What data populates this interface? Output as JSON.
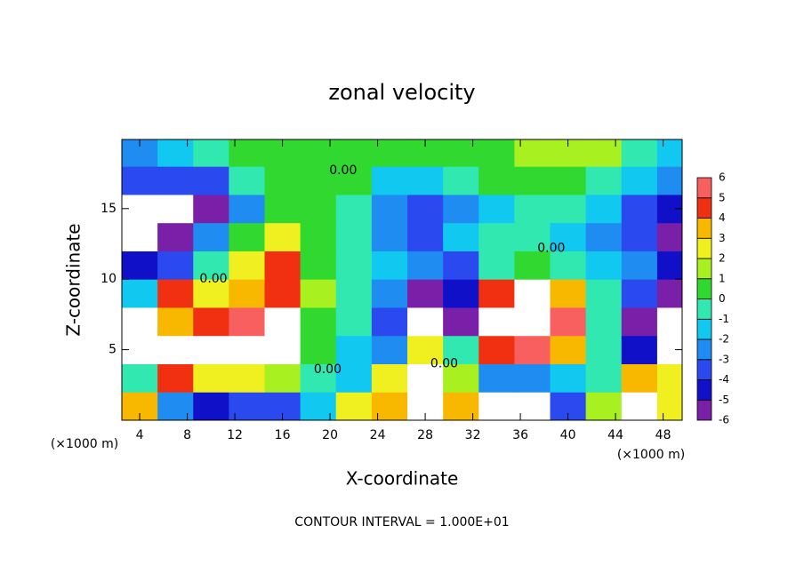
{
  "chart_data": {
    "type": "heatmap",
    "title": "zonal velocity",
    "x_label": "X-coordinate",
    "y_label": "Z-coordinate",
    "x_unit": "(×1000 m)",
    "y_unit": "(×1000 m)",
    "footer": "CONTOUR INTERVAL = 1.000E+01",
    "xlim": [
      2.5,
      49.6
    ],
    "ylim": [
      0,
      19.9
    ],
    "xticks": [
      4,
      8,
      12,
      16,
      20,
      24,
      28,
      32,
      36,
      40,
      44,
      48
    ],
    "yticks": [
      5,
      10,
      15
    ],
    "x": [
      4,
      7,
      10,
      13,
      16,
      19,
      22,
      25,
      28,
      31,
      34,
      37,
      40,
      43,
      46,
      49
    ],
    "z": [
      1,
      3,
      5,
      7,
      9,
      11,
      13,
      15,
      17,
      19
    ],
    "values": [
      [
        4,
        -2,
        -4,
        -3,
        -3,
        -1,
        3,
        4,
        8,
        4,
        -8,
        -8,
        -3,
        2,
        8,
        3
      ],
      [
        0,
        5,
        3,
        3,
        2,
        0,
        -1,
        3,
        8,
        2,
        -2,
        -2,
        -1,
        0,
        4,
        3
      ],
      [
        -8,
        8,
        7,
        8,
        7,
        1,
        -1,
        -2,
        3,
        0,
        5,
        6,
        4,
        0,
        -4,
        -8
      ],
      [
        -8,
        4,
        5,
        6,
        8,
        1,
        0,
        -3,
        -8,
        -5,
        8,
        8,
        6,
        0,
        -5,
        -8
      ],
      [
        -1,
        5,
        3,
        4,
        5,
        2,
        0,
        -2,
        -5,
        -4,
        5,
        8,
        4,
        0,
        -3,
        -5
      ],
      [
        -4,
        -3,
        0,
        3,
        5,
        1,
        0,
        -1,
        -2,
        -3,
        0,
        0.5,
        0,
        -1,
        -2,
        -4
      ],
      [
        -8,
        -5,
        -2,
        1,
        3,
        0.5,
        0,
        -2,
        -3,
        -1,
        -0.5,
        0,
        -1,
        -2,
        -3,
        -5
      ],
      [
        -8,
        -8,
        -5,
        -2,
        0.5,
        0.5,
        0,
        -2,
        -3,
        -2,
        -1,
        -0.5,
        0,
        -1.5,
        -3,
        -4
      ],
      [
        -3,
        -3.5,
        -3,
        0,
        0.5,
        1,
        0.5,
        -1,
        -1,
        0,
        0.5,
        0.5,
        0.5,
        0,
        -1.5,
        -2.5
      ],
      [
        -2,
        -1.5,
        0,
        0.5,
        1,
        1,
        1,
        1,
        0.5,
        1,
        1,
        1.5,
        2,
        1.5,
        0,
        -1
      ]
    ],
    "levels": [
      -6,
      -5,
      -4,
      -3,
      -2,
      -1,
      0,
      1,
      2,
      3,
      4,
      5,
      6
    ],
    "colors": [
      "#7a1fa8",
      "#1010c8",
      "#2a4af0",
      "#1e8cf0",
      "#10c8f0",
      "#30e8b0",
      "#30d830",
      "#a8f020",
      "#f0f020",
      "#f8b800",
      "#f03010",
      "#f86060"
    ],
    "out_of_range_color": "#ffffff",
    "annotations": [
      {
        "text": "0.00",
        "x": 10.2,
        "y": 10
      },
      {
        "text": "0.00",
        "x": 19.8,
        "y": 3.6
      },
      {
        "text": "0.00",
        "x": 29.6,
        "y": 4
      },
      {
        "text": "0.00",
        "x": 38.6,
        "y": 12.2
      },
      {
        "text": "0.00",
        "x": 21.1,
        "y": 17.7
      }
    ]
  }
}
